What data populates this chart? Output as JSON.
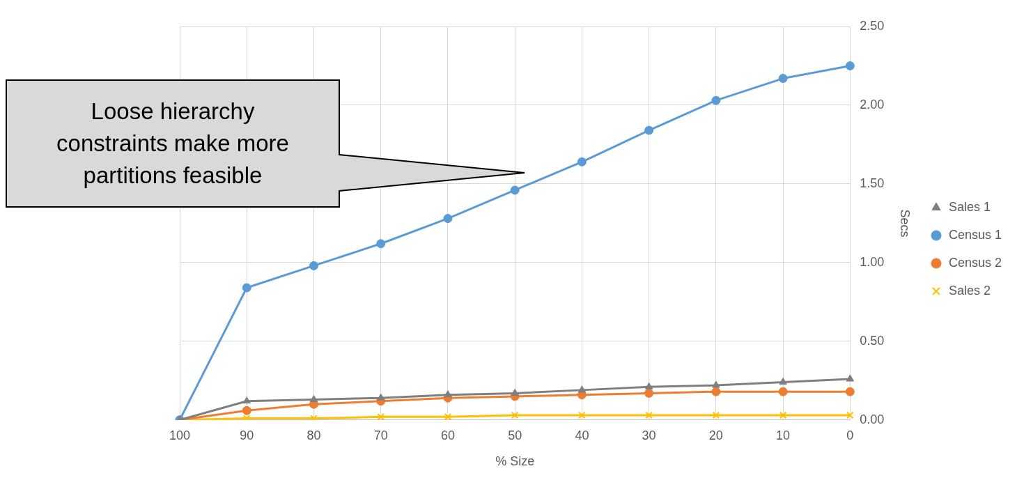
{
  "chart_data": {
    "type": "line",
    "xlabel": "% Size",
    "ylabel": "Secs",
    "categories": [
      "100",
      "90",
      "80",
      "70",
      "60",
      "50",
      "40",
      "30",
      "20",
      "10",
      "0"
    ],
    "series": [
      {
        "name": "Sales 1",
        "color": "#7f7f7f",
        "marker": "triangle",
        "values": [
          0,
          0.12,
          0.13,
          0.14,
          0.16,
          0.17,
          0.19,
          0.21,
          0.22,
          0.24,
          0.26
        ]
      },
      {
        "name": "Census 1",
        "color": "#5b9bd5",
        "marker": "circle",
        "values": [
          0,
          0.84,
          0.98,
          1.12,
          1.28,
          1.46,
          1.64,
          1.84,
          2.03,
          2.17,
          2.25
        ]
      },
      {
        "name": "Census 2",
        "color": "#ed7d31",
        "marker": "circle",
        "values": [
          0,
          0.06,
          0.1,
          0.12,
          0.14,
          0.15,
          0.16,
          0.17,
          0.18,
          0.18,
          0.18
        ]
      },
      {
        "name": "Sales 2",
        "color": "#ffc000",
        "marker": "cross",
        "values": [
          0,
          0.01,
          0.01,
          0.02,
          0.02,
          0.03,
          0.03,
          0.03,
          0.03,
          0.03,
          0.03
        ]
      }
    ],
    "ylim": [
      0,
      2.5
    ],
    "yticks": [
      {
        "value": 0,
        "label": "0.00"
      },
      {
        "value": 0.5,
        "label": "0.50"
      },
      {
        "value": 1,
        "label": "1.00"
      },
      {
        "value": 1.5,
        "label": "1.50"
      },
      {
        "value": 2,
        "label": "2.00"
      },
      {
        "value": 2.5,
        "label": "2.50"
      }
    ],
    "grid": true,
    "legend": "right",
    "line_style": "solid",
    "annotations": [
      "Loose hierarchy constraints make more partitions feasible"
    ]
  }
}
